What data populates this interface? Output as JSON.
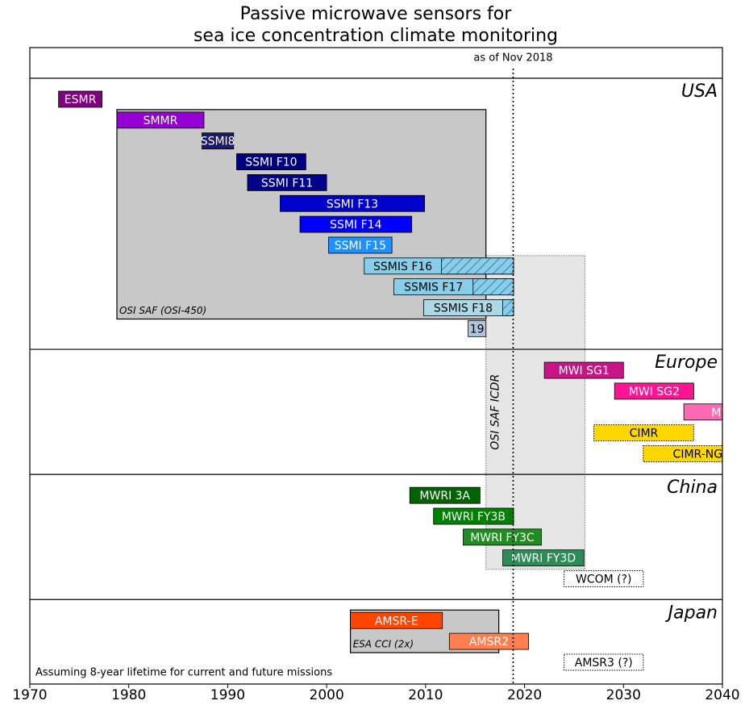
{
  "chart_data": {
    "type": "timeline",
    "title": [
      "Passive microwave sensors for",
      "sea ice concentration climate monitoring"
    ],
    "xlim": [
      1970,
      2040
    ],
    "xticks": [
      1970,
      1980,
      1990,
      2000,
      2010,
      2020,
      2030,
      2040
    ],
    "annotation": {
      "label": "as of Nov 2018",
      "value": 2018.85
    },
    "note": "Assuming 8-year lifetime for current and future missions",
    "groups": [
      {
        "name": "USA",
        "sensors": [
          {
            "name": "ESMR",
            "start": 1972.9,
            "end": 1977.3,
            "color": "#800080",
            "text_color": "#ffffff"
          },
          {
            "name": "SMMR",
            "start": 1978.8,
            "end": 1987.6,
            "color": "#9400d3",
            "text_color": "#ffffff"
          },
          {
            "name": "SSMI8",
            "start": 1987.4,
            "end": 1990.6,
            "color": "#191970",
            "text_color": "#ffffff"
          },
          {
            "name": "SSMI F10",
            "start": 1990.9,
            "end": 1997.9,
            "color": "#000080",
            "text_color": "#ffffff"
          },
          {
            "name": "SSMI F11",
            "start": 1992.0,
            "end": 2000.0,
            "color": "#00008b",
            "text_color": "#ffffff"
          },
          {
            "name": "SSMI F13",
            "start": 1995.3,
            "end": 2009.9,
            "color": "#0000cd",
            "text_color": "#ffffff"
          },
          {
            "name": "SSMI F14",
            "start": 1997.3,
            "end": 2008.6,
            "color": "#0000ff",
            "text_color": "#ffffff"
          },
          {
            "name": "SSMI F15",
            "start": 2000.2,
            "end": 2006.6,
            "color": "#1e90ff",
            "text_color": "#ffffff"
          },
          {
            "name": "SSMIS F16",
            "start": 2003.8,
            "end": 2018.9,
            "hatch_from": 2011.6,
            "color": "#87ceeb",
            "text_color": "#000000"
          },
          {
            "name": "SSMIS F17",
            "start": 2006.8,
            "end": 2018.9,
            "hatch_from": 2014.8,
            "color": "#87ceeb",
            "text_color": "#000000"
          },
          {
            "name": "SSMIS F18",
            "start": 2009.8,
            "end": 2018.9,
            "hatch_from": 2017.8,
            "color": "#add8e6",
            "text_color": "#000000"
          },
          {
            "name": "19",
            "start": 2014.3,
            "end": 2016.1,
            "color": "#b0c4de",
            "text_color": "#000000"
          }
        ]
      },
      {
        "name": "Europe",
        "sensors": [
          {
            "name": "MWI SG1",
            "start": 2022.0,
            "end": 2030.0,
            "color": "#c71585",
            "text_color": "#ffffff"
          },
          {
            "name": "MWI SG2",
            "start": 2029.1,
            "end": 2037.1,
            "color": "#ff1493",
            "text_color": "#ffffff"
          },
          {
            "name": "MWI",
            "start": 2036.1,
            "end": 2044.1,
            "color": "#ff69b4",
            "text_color": "#ffffff"
          },
          {
            "name": "CIMR",
            "start": 2027.0,
            "end": 2037.1,
            "color": "#ffd700",
            "text_color": "#000000",
            "border": "dotted"
          },
          {
            "name": "CIMR-NG",
            "start": 2032.0,
            "end": 2043.0,
            "color": "#ffd700",
            "text_color": "#000000",
            "border": "dotted"
          }
        ]
      },
      {
        "name": "China",
        "sensors": [
          {
            "name": "MWRI 3A",
            "start": 2008.4,
            "end": 2015.5,
            "color": "#006400",
            "text_color": "#ffffff"
          },
          {
            "name": "MWRI FY3B",
            "start": 2010.8,
            "end": 2018.9,
            "color": "#008000",
            "text_color": "#ffffff"
          },
          {
            "name": "MWRI FY3C",
            "start": 2013.8,
            "end": 2021.7,
            "color": "#228b22",
            "text_color": "#ffffff"
          },
          {
            "name": "MWRI FY3D",
            "start": 2017.8,
            "end": 2026.0,
            "color": "#2e8b57",
            "text_color": "#ffffff"
          },
          {
            "name": "WCOM (?)",
            "start": 2024.0,
            "end": 2032.0,
            "color": "#ffffff",
            "text_color": "#000000",
            "border": "dotted"
          }
        ]
      },
      {
        "name": "Japan",
        "sensors": [
          {
            "name": "AMSR-E",
            "start": 2002.4,
            "end": 2011.7,
            "color": "#ff4500",
            "text_color": "#ffffff"
          },
          {
            "name": "AMSR2",
            "start": 2012.4,
            "end": 2020.4,
            "color": "#ff7f50",
            "text_color": "#ffffff"
          },
          {
            "name": "AMSR3 (?)",
            "start": 2024.0,
            "end": 2032.0,
            "color": "#ffffff",
            "text_color": "#000000",
            "border": "dotted"
          }
        ]
      }
    ],
    "coverage": [
      {
        "label": "OSI SAF (OSI-450)",
        "start": 1978.8,
        "end": 2016.1,
        "color": "#c8c8c8"
      },
      {
        "label": "OSI SAF ICDR",
        "start": 2016.1,
        "end": 2026.1,
        "color": "#e6e6e6",
        "border": "dotted"
      },
      {
        "label": "ESA CCI (2x)",
        "start": 2002.4,
        "end": 2017.4,
        "color": "#c8c8c8"
      }
    ]
  }
}
